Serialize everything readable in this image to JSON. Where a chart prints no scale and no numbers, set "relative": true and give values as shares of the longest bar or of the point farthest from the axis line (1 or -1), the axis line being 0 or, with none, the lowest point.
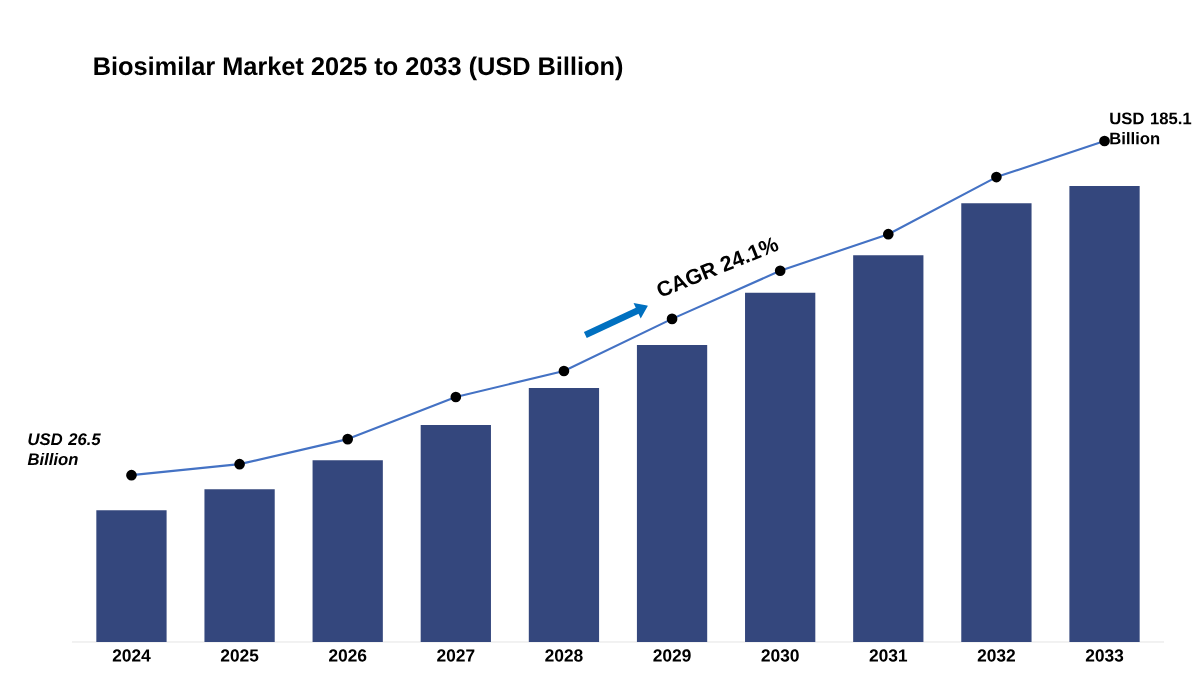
{
  "chart_data": {
    "type": "bar",
    "title": "Biosimilar Market 2025 to 2033 (USD Billion)",
    "relative": true,
    "categories": [
      "2024",
      "2025",
      "2026",
      "2027",
      "2028",
      "2029",
      "2030",
      "2031",
      "2032",
      "2033"
    ],
    "series": [
      {
        "color": "#34477d",
        "values": [
          0.263,
          0.305,
          0.363,
          0.433,
          0.507,
          0.593,
          0.697,
          0.772,
          0.876,
          0.91
        ]
      },
      {
        "type": "line",
        "color": "#4472c4",
        "marker": "circle",
        "values": [
          0.333,
          0.355,
          0.405,
          0.489,
          0.541,
          0.645,
          0.741,
          0.814,
          0.928,
          1
        ]
      }
    ],
    "annotations": [
      {
        "text": "USD 26.5 Billion",
        "x": "2024",
        "y": 0.333
      },
      {
        "text": "USD 185.1 Billion",
        "x": "2033",
        "y": 1
      },
      "CAGR 24.1%"
    ]
  }
}
